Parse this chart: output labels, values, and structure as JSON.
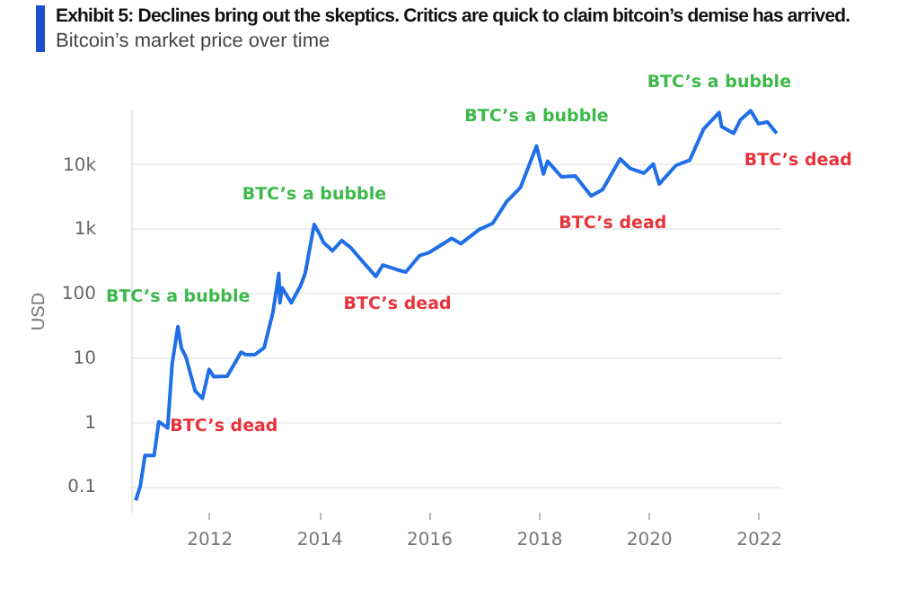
{
  "chart_data": {
    "type": "line",
    "title": "Exhibit 5: Declines bring out the skeptics. Critics are quick to  claim bitcoin’s demise has arrived.",
    "subtitle": "Bitcoin’s market price over time",
    "ylabel": "USD",
    "log": "y",
    "grid": "y",
    "marker": "none",
    "line_style": "solid",
    "xlim": [
      "2010-08",
      "2022-06"
    ],
    "xticks": [
      {
        "value": "2012",
        "label": "2012"
      },
      {
        "value": "2014",
        "label": "2014"
      },
      {
        "value": "2016",
        "label": "2016"
      },
      {
        "value": "2018",
        "label": "2018"
      },
      {
        "value": "2020",
        "label": "2020"
      },
      {
        "value": "2022",
        "label": "2022"
      }
    ],
    "ylim": [
      0.04,
      70000
    ],
    "yticks": [
      0.1,
      1,
      10,
      100,
      {
        "value": 1000,
        "label": "1k"
      },
      {
        "value": 10000,
        "label": "10k"
      }
    ],
    "x": [
      "2010-09",
      "2010-10",
      "2010-11",
      "2011-01",
      "2011-02",
      "2011-04",
      "2011-05",
      "2011-06-08",
      "2011-07",
      "2011-08",
      "2011-10",
      "2011-11-18",
      "2012-01",
      "2012-02",
      "2012-05",
      "2012-08",
      "2012-09",
      "2012-11",
      "2013-01",
      "2013-03",
      "2013-04-09",
      "2013-04-16",
      "2013-05",
      "2013-07",
      "2013-09",
      "2013-10",
      "2013-11-30",
      "2014-01",
      "2014-02",
      "2014-04",
      "2014-06",
      "2014-08",
      "2014-10",
      "2015-01-14",
      "2015-03",
      "2015-06",
      "2015-08",
      "2015-11",
      "2016-01",
      "2016-06",
      "2016-08",
      "2016-12",
      "2017-03",
      "2017-06",
      "2017-09",
      "2017-12-17",
      "2018-02",
      "2018-03",
      "2018-06",
      "2018-09",
      "2018-12-15",
      "2019-03",
      "2019-06-26",
      "2019-09",
      "2019-12",
      "2020-02",
      "2020-03-12",
      "2020-07",
      "2020-10",
      "2020-12",
      "2021-01",
      "2021-04-14",
      "2021-05",
      "2021-07-20",
      "2021-09",
      "2021-11-10",
      "2022-01",
      "2022-03",
      "2022-05"
    ],
    "series": [
      {
        "color": "#1f6fe8",
        "values": [
          0.06,
          0.1,
          0.3,
          0.3,
          1.0,
          0.8,
          8,
          30,
          14,
          10,
          3,
          2.3,
          6.5,
          5,
          5.1,
          12,
          11,
          11,
          14,
          50,
          200,
          70,
          120,
          70,
          130,
          200,
          1150,
          850,
          600,
          450,
          650,
          500,
          340,
          180,
          270,
          230,
          210,
          380,
          420,
          700,
          580,
          960,
          1200,
          2600,
          4300,
          19000,
          7000,
          11000,
          6300,
          6500,
          3200,
          4000,
          12000,
          8500,
          7200,
          10000,
          4900,
          9500,
          11500,
          24000,
          35000,
          63000,
          38000,
          30000,
          48000,
          67000,
          42000,
          45000,
          30000
        ]
      }
    ],
    "annotations": [
      {
        "text": "BTC’s a bubble",
        "x": "2011-06-08",
        "y": 30
      },
      {
        "text": "BTC’s dead",
        "x": "2011-11-18",
        "y": 2.3
      },
      {
        "text": "BTC’s a bubble",
        "x": "2013-11-30",
        "y": 1150
      },
      {
        "text": "BTC’s dead",
        "x": "2015-01-14",
        "y": 180
      },
      {
        "text": "BTC’s a bubble",
        "x": "2017-12-17",
        "y": 19000
      },
      {
        "text": "BTC’s dead",
        "x": "2018-12-15",
        "y": 3200
      },
      {
        "text": "BTC’s a bubble",
        "x": "2021-04-14",
        "y": 63000
      },
      {
        "text": "BTC’s dead",
        "x": "2022-05",
        "y": 30000
      }
    ]
  }
}
